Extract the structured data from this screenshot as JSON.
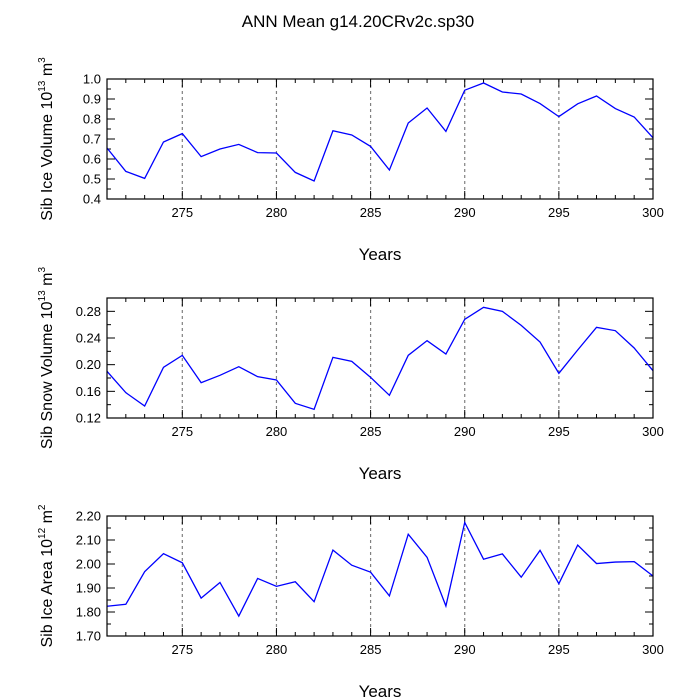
{
  "title": "ANN Mean g14.20CRv2c.sp30",
  "colors": {
    "line": "#0000ff",
    "axis": "#000000",
    "grid": "#808080",
    "background": "#ffffff"
  },
  "chart_data": [
    {
      "type": "line",
      "ylabel_main": "Sib Ice Volume 10",
      "ylabel_exp": "13",
      "ylabel_unit": "m",
      "ylabel_unit_exp": "3",
      "xlabel": "Years",
      "xlim": [
        271,
        300
      ],
      "ylim": [
        0.4,
        1.0
      ],
      "xticks": [
        275,
        280,
        285,
        290,
        295,
        300
      ],
      "xtick_labels": [
        "275",
        "280",
        "285",
        "290",
        "295",
        "300"
      ],
      "yticks": [
        0.4,
        0.5,
        0.6,
        0.7,
        0.8,
        0.9,
        1.0
      ],
      "ytick_labels": [
        "0.4",
        "0.5",
        "0.6",
        "0.7",
        "0.8",
        "0.9",
        "1.0"
      ],
      "grid_x": [
        275,
        280,
        285,
        290,
        295
      ],
      "x": [
        271,
        272,
        273,
        274,
        275,
        276,
        277,
        278,
        279,
        280,
        281,
        282,
        283,
        284,
        285,
        286,
        287,
        288,
        289,
        290,
        291,
        292,
        293,
        294,
        295,
        296,
        297,
        298,
        299,
        300
      ],
      "values": [
        0.655,
        0.538,
        0.503,
        0.685,
        0.727,
        0.612,
        0.65,
        0.673,
        0.632,
        0.63,
        0.533,
        0.49,
        0.741,
        0.72,
        0.663,
        0.545,
        0.78,
        0.855,
        0.738,
        0.944,
        0.98,
        0.935,
        0.925,
        0.877,
        0.812,
        0.876,
        0.915,
        0.852,
        0.81,
        0.706
      ]
    },
    {
      "type": "line",
      "ylabel_main": "Sib Snow Volume 10",
      "ylabel_exp": "13",
      "ylabel_unit": "m",
      "ylabel_unit_exp": "3",
      "xlabel": "Years",
      "xlim": [
        271,
        300
      ],
      "ylim": [
        0.12,
        0.3
      ],
      "xticks": [
        275,
        280,
        285,
        290,
        295,
        300
      ],
      "xtick_labels": [
        "275",
        "280",
        "285",
        "290",
        "295",
        "300"
      ],
      "yticks": [
        0.12,
        0.16,
        0.2,
        0.24,
        0.28
      ],
      "ytick_labels": [
        "0.12",
        "0.16",
        "0.20",
        "0.24",
        "0.28"
      ],
      "grid_x": [
        275,
        280,
        285,
        290,
        295
      ],
      "x": [
        271,
        272,
        273,
        274,
        275,
        276,
        277,
        278,
        279,
        280,
        281,
        282,
        283,
        284,
        285,
        286,
        287,
        288,
        289,
        290,
        291,
        292,
        293,
        294,
        295,
        296,
        297,
        298,
        299,
        300
      ],
      "values": [
        0.19,
        0.158,
        0.138,
        0.196,
        0.214,
        0.173,
        0.184,
        0.197,
        0.182,
        0.177,
        0.142,
        0.133,
        0.211,
        0.205,
        0.181,
        0.154,
        0.214,
        0.236,
        0.216,
        0.268,
        0.286,
        0.28,
        0.259,
        0.234,
        0.187,
        0.222,
        0.256,
        0.251,
        0.225,
        0.191
      ]
    },
    {
      "type": "line",
      "ylabel_main": "Sib Ice Area 10",
      "ylabel_exp": "12",
      "ylabel_unit": "m",
      "ylabel_unit_exp": "2",
      "xlabel": "Years",
      "xlim": [
        271,
        300
      ],
      "ylim": [
        1.7,
        2.2
      ],
      "xticks": [
        275,
        280,
        285,
        290,
        295,
        300
      ],
      "xtick_labels": [
        "275",
        "280",
        "285",
        "290",
        "295",
        "300"
      ],
      "yticks": [
        1.7,
        1.8,
        1.9,
        2.0,
        2.1,
        2.2
      ],
      "ytick_labels": [
        "1.70",
        "1.80",
        "1.90",
        "2.00",
        "2.10",
        "2.20"
      ],
      "grid_x": [
        275,
        280,
        285,
        290,
        295
      ],
      "x": [
        271,
        272,
        273,
        274,
        275,
        276,
        277,
        278,
        279,
        280,
        281,
        282,
        283,
        284,
        285,
        286,
        287,
        288,
        289,
        290,
        291,
        292,
        293,
        294,
        295,
        296,
        297,
        298,
        299,
        300
      ],
      "values": [
        1.824,
        1.832,
        1.968,
        2.043,
        2.005,
        1.858,
        1.923,
        1.783,
        1.94,
        1.907,
        1.926,
        1.843,
        2.058,
        1.995,
        1.966,
        1.867,
        2.124,
        2.028,
        1.825,
        2.173,
        2.02,
        2.042,
        1.945,
        2.057,
        1.918,
        2.079,
        2.002,
        2.008,
        2.01,
        1.95
      ]
    }
  ]
}
